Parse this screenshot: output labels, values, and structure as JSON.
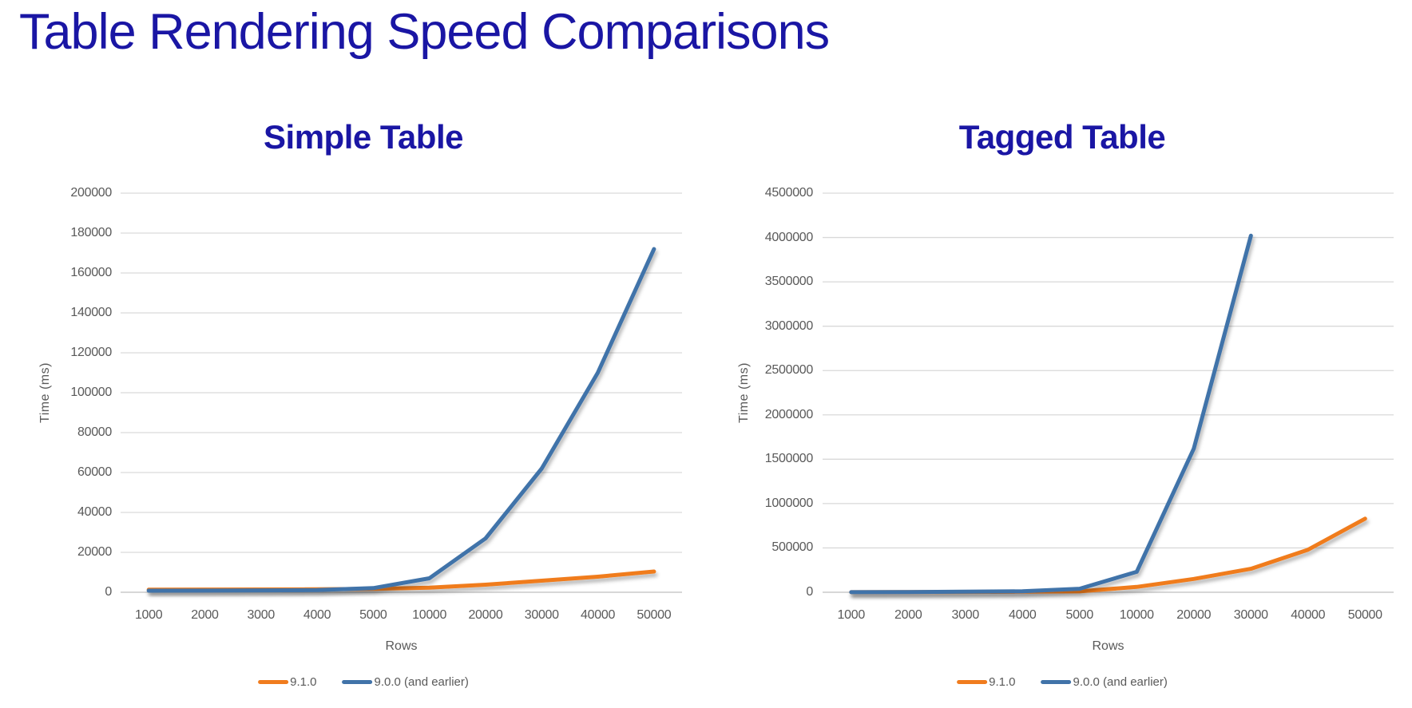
{
  "page": {
    "title": "Table Rendering Speed Comparisons",
    "background": "#FFFFFF",
    "title_color": "#1A16A4"
  },
  "colors": {
    "navy_title": "#1A16A4",
    "series_9_1_0": "#F07C1E",
    "series_9_0_0": "#4173A9",
    "gridline": "#D9D9D9",
    "axis_line": "#BFBFBF",
    "axis_text": "#595959"
  },
  "chart_data": [
    {
      "type": "line",
      "title": "Simple Table",
      "xlabel": "Rows",
      "ylabel": "Time (ms)",
      "categories": [
        "1000",
        "2000",
        "3000",
        "4000",
        "5000",
        "10000",
        "20000",
        "30000",
        "40000",
        "50000"
      ],
      "ylim": [
        0,
        200000
      ],
      "ystep": 20000,
      "grid": true,
      "legend_position": "bottom",
      "series": [
        {
          "name": "9.1.0",
          "color": "#F07C1E",
          "values": [
            1300,
            1350,
            1400,
            1500,
            1700,
            2300,
            3800,
            5800,
            7800,
            10400
          ]
        },
        {
          "name": "9.0.0 (and earlier)",
          "color": "#4173A9",
          "values": [
            800,
            850,
            950,
            1100,
            2100,
            7000,
            27000,
            62000,
            110000,
            172000
          ]
        }
      ]
    },
    {
      "type": "line",
      "title": "Tagged Table",
      "xlabel": "Rows",
      "ylabel": "Time (ms)",
      "categories": [
        "1000",
        "2000",
        "3000",
        "4000",
        "5000",
        "10000",
        "20000",
        "30000",
        "40000",
        "50000"
      ],
      "ylim": [
        0,
        4500000
      ],
      "ystep": 500000,
      "grid": true,
      "legend_position": "bottom",
      "series": [
        {
          "name": "9.1.0",
          "color": "#F07C1E",
          "values": [
            800,
            2000,
            4000,
            6500,
            10000,
            60000,
            150000,
            265000,
            480000,
            830000
          ]
        },
        {
          "name": "9.0.0 (and earlier)",
          "color": "#4173A9",
          "values": [
            1200,
            3000,
            6000,
            12000,
            40000,
            230000,
            1620000,
            4020000,
            null,
            null
          ]
        }
      ]
    }
  ]
}
